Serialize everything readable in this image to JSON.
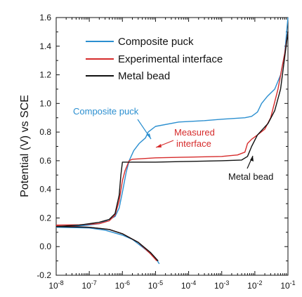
{
  "chart_data": {
    "type": "line",
    "title": "",
    "xlabel": "",
    "ylabel": "Potential (V) vs SCE",
    "xscale": "log",
    "xlim": [
      1e-08,
      0.1
    ],
    "ylim": [
      -0.2,
      1.6
    ],
    "grid": false,
    "legend_position": "top-left",
    "x_ticks": [
      {
        "value": 1e-08,
        "base": "10",
        "exp": "-8"
      },
      {
        "value": 1e-07,
        "base": "10",
        "exp": "-7"
      },
      {
        "value": 1e-06,
        "base": "10",
        "exp": "-6"
      },
      {
        "value": 1e-05,
        "base": "10",
        "exp": "-5"
      },
      {
        "value": 0.0001,
        "base": "10",
        "exp": "-4"
      },
      {
        "value": 0.001,
        "base": "10",
        "exp": "-3"
      },
      {
        "value": 0.01,
        "base": "10",
        "exp": "-2"
      },
      {
        "value": 0.1,
        "base": "10",
        "exp": "-1"
      }
    ],
    "y_ticks": [
      {
        "value": -0.2,
        "label": "-0.2"
      },
      {
        "value": 0.0,
        "label": "0.0"
      },
      {
        "value": 0.2,
        "label": "0.2"
      },
      {
        "value": 0.4,
        "label": "0.4"
      },
      {
        "value": 0.6,
        "label": "0.6"
      },
      {
        "value": 0.8,
        "label": "0.8"
      },
      {
        "value": 1.0,
        "label": "1.0"
      },
      {
        "value": 1.2,
        "label": "1.2"
      },
      {
        "value": 1.4,
        "label": "1.4"
      },
      {
        "value": 1.6,
        "label": "1.6"
      }
    ],
    "series": [
      {
        "name": "Composite puck",
        "color": "#2b8fd0",
        "anodic": [
          [
            1e-08,
            0.14
          ],
          [
            3e-08,
            0.142
          ],
          [
            8e-08,
            0.148
          ],
          [
            2e-07,
            0.16
          ],
          [
            4e-07,
            0.19
          ],
          [
            6e-07,
            0.21
          ],
          [
            8e-07,
            0.27
          ],
          [
            1e-06,
            0.38
          ],
          [
            1.3e-06,
            0.52
          ],
          [
            1.6e-06,
            0.6
          ],
          [
            2.2e-06,
            0.67
          ],
          [
            3.2e-06,
            0.72
          ],
          [
            5e-06,
            0.76
          ],
          [
            6e-06,
            0.8
          ],
          [
            1e-05,
            0.84
          ],
          [
            5e-05,
            0.87
          ],
          [
            0.0003,
            0.88
          ],
          [
            0.001,
            0.89
          ],
          [
            0.005,
            0.9
          ],
          [
            0.008,
            0.91
          ],
          [
            0.012,
            0.94
          ],
          [
            0.016,
            1.0
          ],
          [
            0.024,
            1.05
          ],
          [
            0.04,
            1.1
          ],
          [
            0.06,
            1.2
          ],
          [
            0.08,
            1.35
          ],
          [
            0.1,
            1.6
          ]
        ],
        "cathodic": [
          [
            1e-08,
            0.135
          ],
          [
            1e-07,
            0.13
          ],
          [
            3e-07,
            0.115
          ],
          [
            1e-06,
            0.08
          ],
          [
            2e-06,
            0.05
          ],
          [
            5e-06,
            -0.02
          ],
          [
            1e-05,
            -0.08
          ],
          [
            1.3e-05,
            -0.12
          ]
        ]
      },
      {
        "name": "Experimental interface",
        "color": "#d62b2b",
        "anodic": [
          [
            1e-08,
            0.15
          ],
          [
            5e-08,
            0.152
          ],
          [
            2e-07,
            0.16
          ],
          [
            4e-07,
            0.18
          ],
          [
            6e-07,
            0.22
          ],
          [
            8e-07,
            0.32
          ],
          [
            1e-06,
            0.46
          ],
          [
            1.2e-06,
            0.53
          ],
          [
            1.6e-06,
            0.6
          ],
          [
            2e-06,
            0.61
          ],
          [
            1e-05,
            0.62
          ],
          [
            0.0001,
            0.625
          ],
          [
            0.001,
            0.63
          ],
          [
            0.003,
            0.64
          ],
          [
            0.005,
            0.66
          ],
          [
            0.006,
            0.72
          ],
          [
            0.008,
            0.75
          ],
          [
            0.012,
            0.78
          ],
          [
            0.02,
            0.82
          ],
          [
            0.03,
            0.9
          ],
          [
            0.05,
            1.1
          ],
          [
            0.08,
            1.35
          ],
          [
            0.1,
            1.5
          ]
        ],
        "cathodic": [
          [
            1e-08,
            0.145
          ],
          [
            1e-07,
            0.135
          ],
          [
            4e-07,
            0.12
          ],
          [
            1e-06,
            0.09
          ],
          [
            3e-06,
            0.03
          ],
          [
            7e-06,
            -0.05
          ],
          [
            1.1e-05,
            -0.1
          ]
        ]
      },
      {
        "name": "Metal bead",
        "color": "#111111",
        "anodic": [
          [
            1e-08,
            0.14
          ],
          [
            5e-08,
            0.15
          ],
          [
            2e-07,
            0.17
          ],
          [
            4e-07,
            0.19
          ],
          [
            6e-07,
            0.23
          ],
          [
            8e-07,
            0.36
          ],
          [
            9e-07,
            0.5
          ],
          [
            1e-06,
            0.59
          ],
          [
            3e-06,
            0.59
          ],
          [
            1e-05,
            0.59
          ],
          [
            0.0001,
            0.595
          ],
          [
            0.001,
            0.6
          ],
          [
            0.004,
            0.605
          ],
          [
            0.006,
            0.63
          ],
          [
            0.008,
            0.7
          ],
          [
            0.012,
            0.78
          ],
          [
            0.025,
            0.86
          ],
          [
            0.04,
            0.95
          ],
          [
            0.06,
            1.1
          ],
          [
            0.1,
            1.5
          ]
        ],
        "cathodic": [
          [
            1e-08,
            0.14
          ],
          [
            1e-07,
            0.135
          ],
          [
            4e-07,
            0.12
          ],
          [
            1e-06,
            0.09
          ],
          [
            3e-06,
            0.03
          ],
          [
            7e-06,
            -0.04
          ],
          [
            1.2e-05,
            -0.1
          ]
        ]
      }
    ],
    "annotations": [
      {
        "text": "Composite puck",
        "color": "#2b8fd0"
      },
      {
        "text": "Measured",
        "color": "#d62b2b"
      },
      {
        "text": "interface",
        "color": "#d62b2b"
      },
      {
        "text": "Metal bead",
        "color": "#111111"
      }
    ]
  }
}
